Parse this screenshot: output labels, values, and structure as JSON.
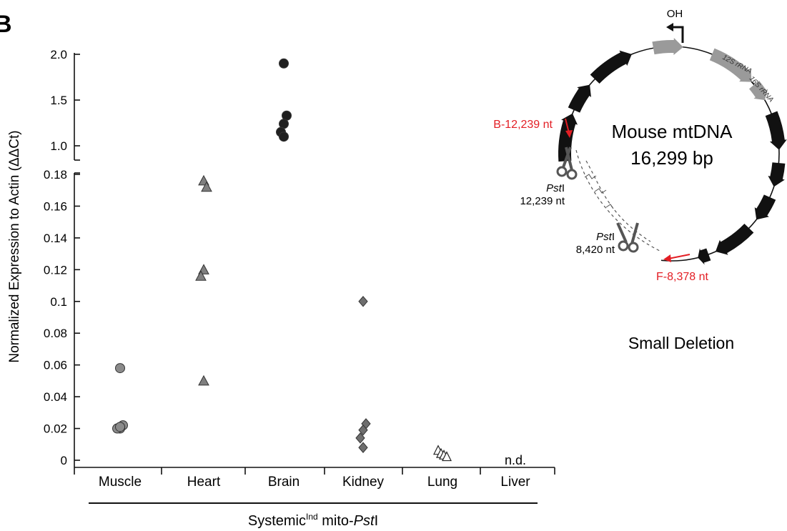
{
  "panel_letter": "B",
  "chart_data": {
    "type": "scatter",
    "title": "",
    "ylabel": "Normalized Expression to Actin (ΔΔCt)",
    "xlabel_prefix": "Systemic",
    "xlabel_superscript": "Ind",
    "xlabel_middle": " mito-",
    "xlabel_italic": "Pst",
    "xlabel_suffix": "I",
    "categories": [
      "Muscle",
      "Heart",
      "Brain",
      "Kidney",
      "Lung",
      "Liver"
    ],
    "y_axis_broken": true,
    "y_lower_range": [
      0,
      0.18
    ],
    "y_lower_ticks": [
      "0",
      "0.02",
      "0.04",
      "0.06",
      "0.08",
      "0.1",
      "0.12",
      "0.14",
      "0.16",
      "0.18"
    ],
    "y_upper_range": [
      1.0,
      2.0
    ],
    "y_upper_ticks": [
      "1.0",
      "1.5",
      "2.0"
    ],
    "grid": false,
    "series": [
      {
        "category": "Muscle",
        "marker": "circle",
        "color": "#8a8a8a",
        "values": [
          0.058,
          0.022,
          0.02,
          0.02,
          0.021
        ]
      },
      {
        "category": "Heart",
        "marker": "triangle",
        "color": "#7f7f7f",
        "values": [
          0.176,
          0.172,
          0.12,
          0.116,
          0.05
        ]
      },
      {
        "category": "Brain",
        "marker": "circle",
        "color": "#1f1f1f",
        "values": [
          1.9,
          1.33,
          1.24,
          1.15,
          1.1
        ]
      },
      {
        "category": "Kidney",
        "marker": "diamond",
        "color": "#6e6e6e",
        "values": [
          0.1,
          0.023,
          0.019,
          0.014,
          0.008
        ]
      },
      {
        "category": "Lung",
        "marker": "open-triangle",
        "color": "#ffffff",
        "values": [
          0.006,
          0.004,
          0.003,
          0.002
        ]
      },
      {
        "category": "Liver",
        "marker": "none",
        "color": "#000000",
        "values": []
      }
    ],
    "annotations": [
      {
        "category": "Liver",
        "text": "n.d."
      }
    ]
  },
  "diagram": {
    "title": "Mouse mtDNA",
    "size": "16,299 bp",
    "oh_label": "OH",
    "rrna_12s": "12S rRNA",
    "rrna_16s": "16S rRNA",
    "primer_b": "B-12,239 nt",
    "primer_f": "F-8,378 nt",
    "site1_enzyme_italic": "Pst",
    "site1_enzyme_suffix": "I",
    "site1_pos": "12,239 nt",
    "site2_enzyme_italic": "Pst",
    "site2_enzyme_suffix": "I",
    "site2_pos": "8,420 nt",
    "caption": "Small Deletion",
    "primer_color": "#e31e24",
    "gene_color": "#111111",
    "rrna_color": "#9a9a9a"
  }
}
